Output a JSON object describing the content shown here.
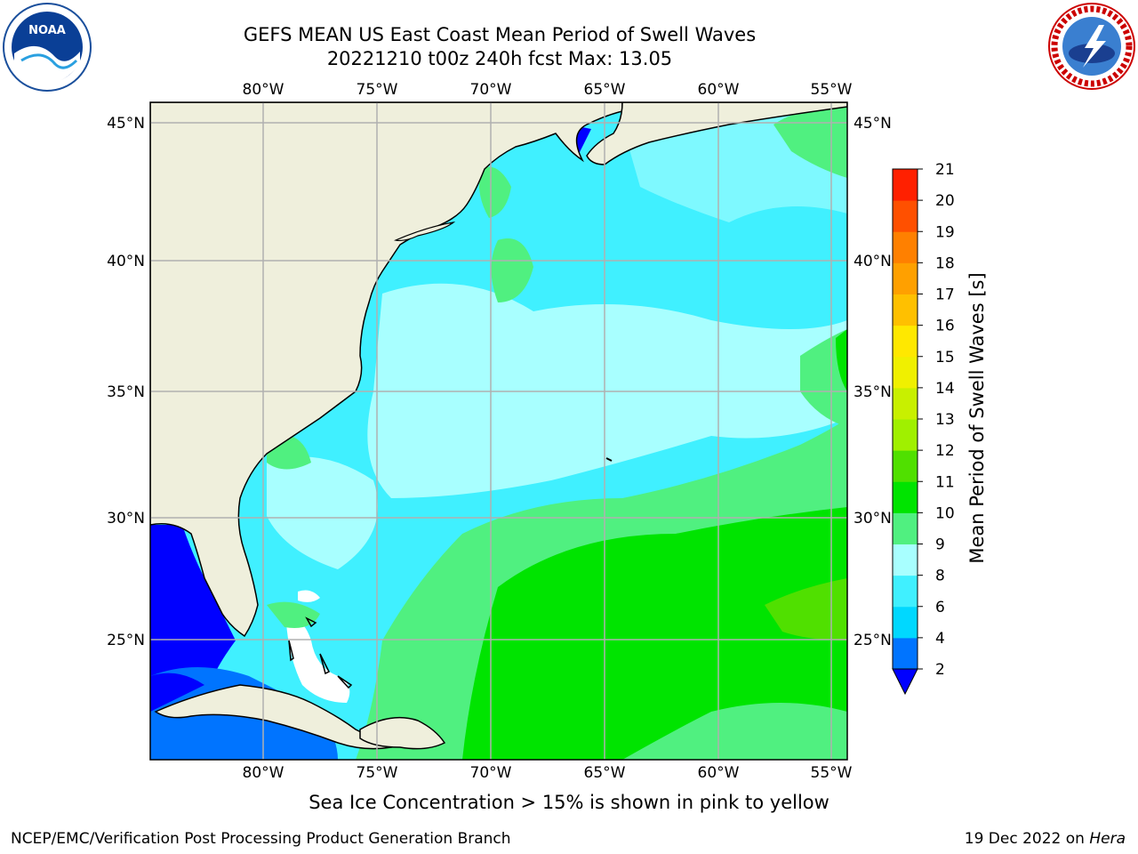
{
  "header": {
    "title_line1": "GEFS MEAN US East Coast Mean Period of Swell Waves",
    "title_line2": "20221210 t00z 240h fcst   Max: 13.05"
  },
  "logos": {
    "left": {
      "icon": "noaa-logo-icon",
      "text": "NOAA"
    },
    "right": {
      "icon": "nws-logo-icon"
    }
  },
  "map": {
    "lon_ticks": [
      "80°W",
      "75°W",
      "70°W",
      "65°W",
      "60°W",
      "55°W"
    ],
    "lat_ticks": [
      "45°N",
      "40°N",
      "35°N",
      "30°N",
      "25°N"
    ],
    "land_color": "#efefdc",
    "grid_color": "#b0b0b0"
  },
  "colorbar": {
    "label": "Mean Period of Swell Waves [s]",
    "ticks": [
      "2",
      "4",
      "6",
      "8",
      "9",
      "10",
      "11",
      "12",
      "13",
      "14",
      "15",
      "16",
      "17",
      "18",
      "19",
      "20",
      "21"
    ],
    "colors": [
      "#0074ff",
      "#00d8ff",
      "#40f0ff",
      "#a8ffff",
      "#50f080",
      "#00e400",
      "#50e000",
      "#a0f000",
      "#c8f000",
      "#f0f000",
      "#ffe800",
      "#ffc000",
      "#ffa000",
      "#ff8000",
      "#ff5000",
      "#ff2000"
    ],
    "under_color": "#0000ff"
  },
  "caption": "Sea Ice Concentration > 15% is shown in pink to yellow",
  "footer": {
    "left": "NCEP/EMC/Verification Post Processing Product Generation Branch",
    "right_date": "19 Dec 2022 on ",
    "right_machine": "Hera"
  }
}
